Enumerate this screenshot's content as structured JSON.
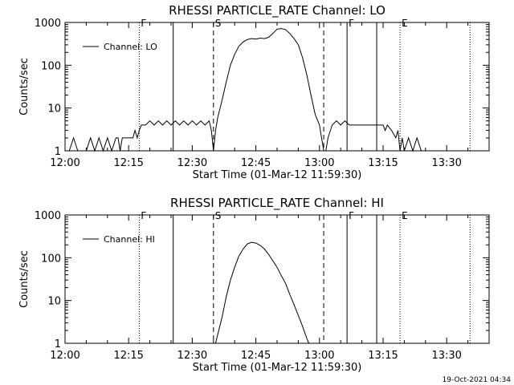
{
  "chart_data": [
    {
      "type": "line",
      "title": "RHESSI PARTICLE_RATE Channel: LO",
      "xlabel": "Start Time (01-Mar-12 11:59:30)",
      "ylabel": "Counts/sec",
      "y_scale": "log",
      "xlim_minutes": [
        0,
        100
      ],
      "ylim": [
        1,
        1000
      ],
      "x_tick_labels": [
        "12:00",
        "12:15",
        "12:30",
        "12:45",
        "13:00",
        "13:15",
        "13:30"
      ],
      "y_tick_labels": [
        "1",
        "10",
        "100",
        "1000"
      ],
      "legend": {
        "label": "Channel: LO",
        "placement": "top-left"
      },
      "markers": [
        {
          "label": "F",
          "time_min": 17.5,
          "style": "dotted"
        },
        {
          "label": "",
          "time_min": 25.5,
          "style": "solid"
        },
        {
          "label": "S",
          "time_min": 35.0,
          "style": "dashed"
        },
        {
          "label": "",
          "time_min": 61.0,
          "style": "dashed"
        },
        {
          "label": "F",
          "time_min": 66.5,
          "style": "solid"
        },
        {
          "label": "",
          "time_min": 73.5,
          "style": "solid"
        },
        {
          "label": "E",
          "time_min": 79.0,
          "style": "dotted"
        },
        {
          "label": "",
          "time_min": 95.5,
          "style": "dotted"
        }
      ],
      "series": [
        {
          "name": "Channel: LO",
          "points": [
            [
              1,
              1
            ],
            [
              2,
              2
            ],
            [
              3,
              1
            ],
            [
              5,
              1
            ],
            [
              6,
              2
            ],
            [
              7,
              1
            ],
            [
              8,
              2
            ],
            [
              9,
              1
            ],
            [
              10,
              2
            ],
            [
              11,
              1
            ],
            [
              12,
              2
            ],
            [
              12.5,
              2
            ],
            [
              13,
              1
            ],
            [
              13.5,
              2
            ],
            [
              16,
              2
            ],
            [
              16.5,
              3
            ],
            [
              17,
              2
            ],
            [
              17.5,
              3
            ],
            [
              18,
              4
            ],
            [
              19,
              4
            ],
            [
              20,
              5
            ],
            [
              21,
              4
            ],
            [
              22,
              5
            ],
            [
              23,
              4
            ],
            [
              24,
              5
            ],
            [
              25,
              4
            ],
            [
              26,
              5
            ],
            [
              27,
              4
            ],
            [
              28,
              5
            ],
            [
              29,
              4
            ],
            [
              30,
              5
            ],
            [
              31,
              4
            ],
            [
              32,
              5
            ],
            [
              33,
              4
            ],
            [
              34,
              5
            ],
            [
              34.5,
              3
            ],
            [
              35,
              1
            ],
            [
              35.5,
              3
            ],
            [
              36,
              6
            ],
            [
              37,
              15
            ],
            [
              38,
              40
            ],
            [
              39,
              100
            ],
            [
              40,
              180
            ],
            [
              41,
              280
            ],
            [
              42,
              350
            ],
            [
              43,
              400
            ],
            [
              44,
              420
            ],
            [
              45,
              410
            ],
            [
              46,
              430
            ],
            [
              47,
              420
            ],
            [
              48,
              450
            ],
            [
              49,
              550
            ],
            [
              50,
              700
            ],
            [
              51,
              720
            ],
            [
              52,
              680
            ],
            [
              53,
              550
            ],
            [
              54,
              420
            ],
            [
              55,
              300
            ],
            [
              56,
              150
            ],
            [
              57,
              60
            ],
            [
              58,
              20
            ],
            [
              59,
              7
            ],
            [
              60,
              4
            ],
            [
              60.5,
              2
            ],
            [
              61,
              1
            ],
            [
              61.5,
              1
            ],
            [
              62,
              2
            ],
            [
              63,
              4
            ],
            [
              64,
              5
            ],
            [
              65,
              4
            ],
            [
              66,
              5
            ],
            [
              67,
              4
            ],
            [
              68,
              4
            ],
            [
              69,
              4
            ],
            [
              70,
              4
            ],
            [
              71,
              4
            ],
            [
              72,
              4
            ],
            [
              73,
              4
            ],
            [
              74,
              4
            ],
            [
              75,
              4
            ],
            [
              75.5,
              3
            ],
            [
              76,
              4
            ],
            [
              77,
              3
            ],
            [
              78,
              2
            ],
            [
              78.5,
              3
            ],
            [
              79,
              1
            ],
            [
              79.5,
              2
            ],
            [
              80,
              1
            ],
            [
              81,
              2
            ],
            [
              82,
              1
            ],
            [
              83,
              2
            ],
            [
              84,
              1
            ],
            [
              85,
              1
            ]
          ]
        }
      ]
    },
    {
      "type": "line",
      "title": "RHESSI PARTICLE_RATE Channel: HI",
      "xlabel": "Start Time (01-Mar-12 11:59:30)",
      "ylabel": "Counts/sec",
      "y_scale": "log",
      "xlim_minutes": [
        0,
        100
      ],
      "ylim": [
        1,
        1000
      ],
      "x_tick_labels": [
        "12:00",
        "12:15",
        "12:30",
        "12:45",
        "13:00",
        "13:15",
        "13:30"
      ],
      "y_tick_labels": [
        "1",
        "10",
        "100",
        "1000"
      ],
      "legend": {
        "label": "Channel: HI",
        "placement": "top-left"
      },
      "markers": [
        {
          "label": "F",
          "time_min": 17.5,
          "style": "dotted"
        },
        {
          "label": "",
          "time_min": 25.5,
          "style": "solid"
        },
        {
          "label": "S",
          "time_min": 35.0,
          "style": "dashed"
        },
        {
          "label": "",
          "time_min": 61.0,
          "style": "dashed"
        },
        {
          "label": "F",
          "time_min": 66.5,
          "style": "solid"
        },
        {
          "label": "",
          "time_min": 73.5,
          "style": "solid"
        },
        {
          "label": "E",
          "time_min": 79.0,
          "style": "dotted"
        },
        {
          "label": "",
          "time_min": 95.5,
          "style": "dotted"
        }
      ],
      "series": [
        {
          "name": "Channel: HI",
          "points": [
            [
              35.5,
              1
            ],
            [
              36,
              1.6
            ],
            [
              37,
              4
            ],
            [
              38,
              12
            ],
            [
              39,
              30
            ],
            [
              40,
              60
            ],
            [
              41,
              110
            ],
            [
              42,
              160
            ],
            [
              43,
              210
            ],
            [
              44,
              230
            ],
            [
              45,
              220
            ],
            [
              46,
              195
            ],
            [
              47,
              160
            ],
            [
              48,
              120
            ],
            [
              49,
              85
            ],
            [
              50,
              60
            ],
            [
              51,
              38
            ],
            [
              52,
              25
            ],
            [
              53,
              14
            ],
            [
              54,
              8
            ],
            [
              55,
              4.5
            ],
            [
              56,
              2.5
            ],
            [
              57,
              1.3
            ],
            [
              57.5,
              1
            ]
          ]
        }
      ]
    }
  ],
  "footer": {
    "timestamp": "19-Oct-2021 04:34"
  }
}
